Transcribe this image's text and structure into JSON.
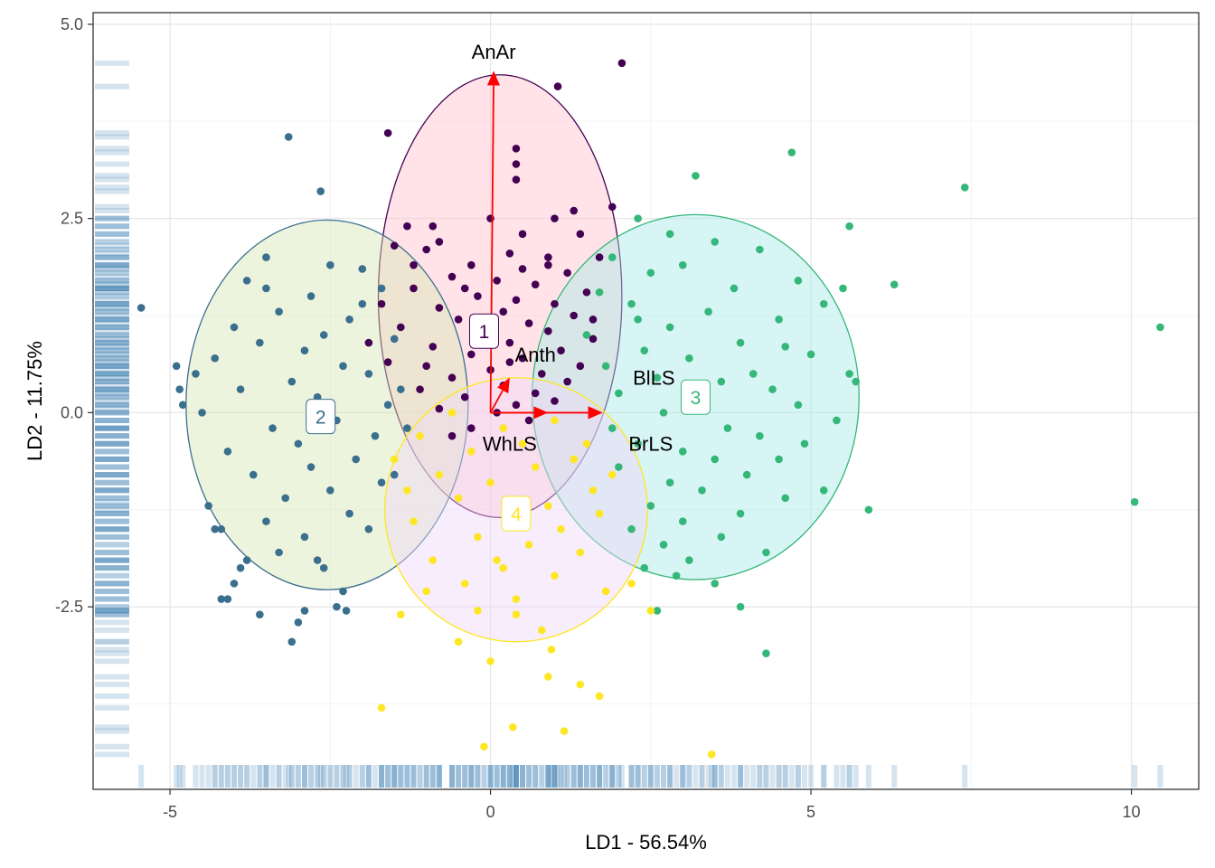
{
  "chart_data": {
    "type": "scatter",
    "title": "",
    "xlabel": "LD1 - 56.54%",
    "ylabel": "LD2 - 11.75%",
    "xlim": [
      -6.2,
      11.05
    ],
    "ylim": [
      -4.85,
      5.15
    ],
    "xticks": [
      -5,
      0,
      5,
      10
    ],
    "yticks": [
      -2.5,
      0.0,
      2.5,
      5.0
    ],
    "xtick_labels": [
      "-5",
      "0",
      "5",
      "10"
    ],
    "ytick_labels": [
      "-2.5",
      "0.0",
      "2.5",
      "5.0"
    ],
    "grid": true,
    "panel_border": true,
    "rug": {
      "x_side": "bottom",
      "y_side": "left",
      "color": "#4682B4"
    },
    "groups": [
      {
        "label": "1",
        "color": "#440154",
        "fill": "#FFC0CB",
        "ellipse": {
          "cx": 0.15,
          "cy": 1.5,
          "rx": 1.9,
          "ry": 2.85
        },
        "label_pos": [
          -0.1,
          1.05
        ],
        "points": [
          [
            2.05,
            4.5
          ],
          [
            1.05,
            4.2
          ],
          [
            -1.6,
            3.6
          ],
          [
            0.4,
            3.4
          ],
          [
            0.4,
            3.2
          ],
          [
            0.4,
            3.0
          ],
          [
            1.9,
            2.65
          ],
          [
            1.4,
            2.3
          ],
          [
            -0.8,
            2.2
          ],
          [
            -1.5,
            2.15
          ],
          [
            -1.0,
            2.1
          ],
          [
            0.3,
            2.05
          ],
          [
            0.9,
            2.0
          ],
          [
            -0.3,
            1.9
          ],
          [
            0.5,
            1.85
          ],
          [
            1.2,
            1.8
          ],
          [
            -0.6,
            1.75
          ],
          [
            0.1,
            1.7
          ],
          [
            0.7,
            1.65
          ],
          [
            -1.2,
            1.6
          ],
          [
            1.5,
            1.55
          ],
          [
            -0.2,
            1.5
          ],
          [
            0.4,
            1.45
          ],
          [
            1.0,
            1.4
          ],
          [
            -0.8,
            1.35
          ],
          [
            0.2,
            1.3
          ],
          [
            1.3,
            1.25
          ],
          [
            -0.5,
            1.2
          ],
          [
            0.6,
            1.15
          ],
          [
            -1.4,
            1.1
          ],
          [
            0.9,
            1.05
          ],
          [
            -0.1,
            1.0
          ],
          [
            1.6,
            0.95
          ],
          [
            0.3,
            0.9
          ],
          [
            -0.9,
            0.85
          ],
          [
            1.1,
            0.8
          ],
          [
            -0.3,
            0.75
          ],
          [
            0.5,
            0.7
          ],
          [
            -1.6,
            0.65
          ],
          [
            1.4,
            0.6
          ],
          [
            0.0,
            0.55
          ],
          [
            0.8,
            0.5
          ],
          [
            -0.6,
            0.45
          ],
          [
            1.2,
            0.4
          ],
          [
            0.2,
            0.35
          ],
          [
            -1.1,
            0.3
          ],
          [
            0.7,
            0.25
          ],
          [
            -0.4,
            0.2
          ],
          [
            1.0,
            0.15
          ],
          [
            0.4,
            0.1
          ],
          [
            -0.8,
            0.05
          ],
          [
            0.1,
            0.0
          ],
          [
            0.6,
            -0.1
          ],
          [
            -0.3,
            -0.2
          ],
          [
            -0.6,
            -0.3
          ],
          [
            -1.2,
            1.9
          ],
          [
            -1.7,
            1.4
          ],
          [
            -0.9,
            2.4
          ],
          [
            0.0,
            2.5
          ],
          [
            1.0,
            2.5
          ],
          [
            1.7,
            2.0
          ],
          [
            1.6,
            1.2
          ],
          [
            -1.9,
            0.9
          ],
          [
            -1.0,
            0.6
          ],
          [
            0.3,
            0.65
          ],
          [
            0.9,
            1.9
          ],
          [
            -0.4,
            1.6
          ],
          [
            0.5,
            2.3
          ],
          [
            -1.3,
            2.4
          ],
          [
            1.3,
            2.6
          ]
        ]
      },
      {
        "label": "2",
        "color": "#3B6F8E",
        "fill": "#D6E6B5",
        "ellipse": {
          "cx": -2.55,
          "cy": 0.1,
          "rx": 2.2,
          "ry": 2.38
        },
        "label_pos": [
          -2.65,
          -0.05
        ],
        "points": [
          [
            -5.45,
            1.35
          ],
          [
            -4.9,
            0.6
          ],
          [
            -4.85,
            0.3
          ],
          [
            -4.8,
            0.1
          ],
          [
            -3.15,
            3.55
          ],
          [
            -2.65,
            2.85
          ],
          [
            -3.5,
            2.0
          ],
          [
            -2.5,
            1.9
          ],
          [
            -2.0,
            1.85
          ],
          [
            -3.8,
            1.7
          ],
          [
            -1.7,
            1.6
          ],
          [
            -2.8,
            1.5
          ],
          [
            -3.3,
            1.3
          ],
          [
            -2.2,
            1.2
          ],
          [
            -4.0,
            1.1
          ],
          [
            -2.6,
            1.0
          ],
          [
            -1.5,
            0.95
          ],
          [
            -3.6,
            0.9
          ],
          [
            -2.9,
            0.8
          ],
          [
            -4.3,
            0.7
          ],
          [
            -2.3,
            0.6
          ],
          [
            -1.9,
            0.5
          ],
          [
            -3.1,
            0.4
          ],
          [
            -3.9,
            0.3
          ],
          [
            -2.7,
            0.2
          ],
          [
            -1.6,
            0.1
          ],
          [
            -4.5,
            0.0
          ],
          [
            -2.4,
            -0.1
          ],
          [
            -3.4,
            -0.2
          ],
          [
            -1.8,
            -0.3
          ],
          [
            -3.0,
            -0.4
          ],
          [
            -4.1,
            -0.5
          ],
          [
            -2.1,
            -0.6
          ],
          [
            -2.8,
            -0.7
          ],
          [
            -3.7,
            -0.8
          ],
          [
            -1.7,
            -0.9
          ],
          [
            -2.5,
            -1.0
          ],
          [
            -3.2,
            -1.1
          ],
          [
            -4.4,
            -1.2
          ],
          [
            -2.2,
            -1.3
          ],
          [
            -3.5,
            -1.4
          ],
          [
            -1.9,
            -1.5
          ],
          [
            -4.2,
            -1.5
          ],
          [
            -2.9,
            -1.6
          ],
          [
            -3.3,
            -1.8
          ],
          [
            -2.6,
            -2.0
          ],
          [
            -4.0,
            -2.2
          ],
          [
            -2.3,
            -2.3
          ],
          [
            -3.9,
            -2.0
          ],
          [
            -4.2,
            -2.4
          ],
          [
            -4.1,
            -2.4
          ],
          [
            -2.4,
            -2.5
          ],
          [
            -2.25,
            -2.55
          ],
          [
            -3.6,
            -2.6
          ],
          [
            -3.0,
            -2.7
          ],
          [
            -2.9,
            -2.55
          ],
          [
            -3.1,
            -2.95
          ],
          [
            -4.3,
            -1.5
          ],
          [
            -1.4,
            0.3
          ],
          [
            -1.3,
            -0.2
          ],
          [
            -1.5,
            -0.8
          ],
          [
            -2.0,
            1.4
          ],
          [
            -3.5,
            1.6
          ],
          [
            -4.6,
            0.5
          ],
          [
            -3.8,
            -1.9
          ],
          [
            -2.7,
            -1.9
          ]
        ]
      },
      {
        "label": "3",
        "color": "#35B779",
        "fill": "#A9E8E8",
        "ellipse": {
          "cx": 3.2,
          "cy": 0.2,
          "rx": 2.55,
          "ry": 2.35
        },
        "label_pos": [
          3.2,
          0.2
        ],
        "points": [
          [
            4.7,
            3.35
          ],
          [
            7.4,
            2.9
          ],
          [
            3.2,
            3.05
          ],
          [
            5.6,
            2.4
          ],
          [
            2.3,
            2.5
          ],
          [
            2.8,
            2.3
          ],
          [
            3.5,
            2.2
          ],
          [
            4.2,
            2.1
          ],
          [
            1.9,
            2.0
          ],
          [
            3.0,
            1.9
          ],
          [
            2.5,
            1.8
          ],
          [
            4.8,
            1.7
          ],
          [
            3.8,
            1.6
          ],
          [
            1.7,
            1.55
          ],
          [
            5.5,
            1.6
          ],
          [
            6.3,
            1.65
          ],
          [
            2.2,
            1.4
          ],
          [
            3.4,
            1.3
          ],
          [
            4.5,
            1.2
          ],
          [
            2.8,
            1.1
          ],
          [
            1.5,
            1.0
          ],
          [
            3.9,
            0.9
          ],
          [
            4.6,
            0.85
          ],
          [
            2.4,
            0.8
          ],
          [
            5.0,
            0.75
          ],
          [
            3.1,
            0.7
          ],
          [
            1.8,
            0.6
          ],
          [
            4.1,
            0.5
          ],
          [
            2.6,
            0.45
          ],
          [
            3.6,
            0.4
          ],
          [
            5.6,
            0.5
          ],
          [
            5.7,
            0.4
          ],
          [
            4.4,
            0.3
          ],
          [
            2.0,
            0.25
          ],
          [
            3.3,
            0.2
          ],
          [
            4.8,
            0.1
          ],
          [
            2.7,
            0.0
          ],
          [
            5.4,
            -0.1
          ],
          [
            3.7,
            -0.2
          ],
          [
            4.2,
            -0.3
          ],
          [
            2.3,
            -0.4
          ],
          [
            3.0,
            -0.5
          ],
          [
            4.9,
            -0.4
          ],
          [
            3.5,
            -0.6
          ],
          [
            2.0,
            -0.7
          ],
          [
            4.0,
            -0.8
          ],
          [
            2.8,
            -0.9
          ],
          [
            3.3,
            -1.0
          ],
          [
            4.6,
            -1.1
          ],
          [
            5.2,
            -1.0
          ],
          [
            2.5,
            -1.2
          ],
          [
            3.9,
            -1.3
          ],
          [
            3.0,
            -1.4
          ],
          [
            5.9,
            -1.25
          ],
          [
            2.2,
            -1.5
          ],
          [
            3.6,
            -1.6
          ],
          [
            2.7,
            -1.7
          ],
          [
            4.3,
            -1.8
          ],
          [
            3.1,
            -1.9
          ],
          [
            2.4,
            -2.0
          ],
          [
            2.9,
            -2.1
          ],
          [
            3.5,
            -2.2
          ],
          [
            2.6,
            -2.55
          ],
          [
            3.9,
            -2.5
          ],
          [
            4.3,
            -3.1
          ],
          [
            10.45,
            1.1
          ],
          [
            10.05,
            -1.15
          ],
          [
            2.3,
            1.2
          ],
          [
            1.9,
            -0.2
          ],
          [
            5.2,
            1.4
          ],
          [
            4.5,
            -0.6
          ]
        ]
      },
      {
        "label": "4",
        "color": "#FDE725",
        "fill": "#F0D8F8",
        "ellipse": {
          "cx": 0.4,
          "cy": -1.25,
          "rx": 2.05,
          "ry": 1.7
        },
        "label_pos": [
          0.4,
          -1.3
        ],
        "points": [
          [
            -1.7,
            -3.8
          ],
          [
            -0.1,
            -4.3
          ],
          [
            0.35,
            -4.05
          ],
          [
            1.15,
            -4.1
          ],
          [
            3.45,
            -4.4
          ],
          [
            1.7,
            -3.65
          ],
          [
            0.9,
            -3.4
          ],
          [
            1.4,
            -3.5
          ],
          [
            0.0,
            -3.2
          ],
          [
            -0.5,
            -2.95
          ],
          [
            0.95,
            -3.05
          ],
          [
            -1.4,
            -2.6
          ],
          [
            -1.0,
            -2.3
          ],
          [
            0.4,
            -2.4
          ],
          [
            2.5,
            -2.55
          ],
          [
            1.8,
            -2.3
          ],
          [
            -0.4,
            -2.2
          ],
          [
            1.0,
            -2.1
          ],
          [
            0.2,
            -2.0
          ],
          [
            -0.9,
            -1.9
          ],
          [
            1.4,
            -1.8
          ],
          [
            0.6,
            -1.7
          ],
          [
            -0.2,
            -1.6
          ],
          [
            1.1,
            -1.5
          ],
          [
            -1.2,
            -1.4
          ],
          [
            0.3,
            -1.3
          ],
          [
            0.9,
            -1.2
          ],
          [
            -0.5,
            -1.1
          ],
          [
            1.6,
            -1.0
          ],
          [
            0.0,
            -0.9
          ],
          [
            -0.8,
            -0.8
          ],
          [
            0.7,
            -0.7
          ],
          [
            1.3,
            -0.6
          ],
          [
            -0.3,
            -0.5
          ],
          [
            0.5,
            -0.4
          ],
          [
            -1.1,
            -0.3
          ],
          [
            0.2,
            -0.2
          ],
          [
            1.0,
            -0.1
          ],
          [
            -0.6,
            0.0
          ],
          [
            1.5,
            -0.4
          ],
          [
            -1.5,
            -0.6
          ],
          [
            1.9,
            -0.8
          ],
          [
            0.4,
            -2.6
          ],
          [
            0.8,
            -2.8
          ],
          [
            -0.2,
            -2.55
          ],
          [
            2.2,
            -2.2
          ],
          [
            -1.3,
            -1.0
          ],
          [
            1.7,
            -1.3
          ],
          [
            0.1,
            -1.9
          ]
        ]
      }
    ],
    "arrows": [
      {
        "label": "AnAr",
        "x": 0.05,
        "y": 4.4,
        "label_pos": [
          0.05,
          4.65
        ]
      },
      {
        "label": "Anth",
        "x": 0.3,
        "y": 0.45,
        "label_pos": [
          0.7,
          0.75
        ]
      },
      {
        "label": "BlLS",
        "x": 1.75,
        "y": 0.0,
        "label_pos": [
          2.55,
          0.45
        ]
      },
      {
        "label": "BrLS",
        "x": 1.75,
        "y": 0.0,
        "label_pos": [
          2.5,
          -0.4
        ]
      },
      {
        "label": "WhLS",
        "x": 0.9,
        "y": 0.0,
        "label_pos": [
          0.3,
          -0.4
        ]
      }
    ],
    "arrow_color": "#FF0000",
    "arrow_origin": [
      0,
      0
    ]
  }
}
